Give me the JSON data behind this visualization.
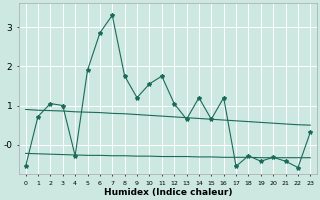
{
  "xlabel": "Humidex (Indice chaleur)",
  "background_color": "#cce8e0",
  "grid_color": "#ffffff",
  "line_color": "#1a6b5a",
  "x": [
    0,
    1,
    2,
    3,
    4,
    5,
    6,
    7,
    8,
    9,
    10,
    11,
    12,
    13,
    14,
    15,
    16,
    17,
    18,
    19,
    20,
    21,
    22,
    23
  ],
  "y_main": [
    -0.55,
    0.72,
    1.05,
    1.0,
    -0.28,
    1.9,
    2.85,
    3.3,
    1.75,
    1.2,
    1.55,
    1.75,
    1.05,
    0.65,
    1.2,
    0.65,
    1.2,
    -0.55,
    -0.28,
    -0.42,
    -0.32,
    -0.42,
    -0.58,
    0.32
  ],
  "y_upper": [
    0.9,
    0.88,
    0.87,
    0.86,
    0.84,
    0.83,
    0.82,
    0.8,
    0.79,
    0.77,
    0.75,
    0.73,
    0.71,
    0.69,
    0.67,
    0.65,
    0.63,
    0.61,
    0.59,
    0.57,
    0.55,
    0.53,
    0.51,
    0.5
  ],
  "y_lower": [
    -0.22,
    -0.23,
    -0.24,
    -0.25,
    -0.26,
    -0.27,
    -0.27,
    -0.28,
    -0.28,
    -0.29,
    -0.29,
    -0.3,
    -0.3,
    -0.3,
    -0.31,
    -0.31,
    -0.32,
    -0.32,
    -0.32,
    -0.33,
    -0.33,
    -0.33,
    -0.33,
    -0.33
  ],
  "ylim": [
    -0.75,
    3.6
  ],
  "yticks": [
    0,
    1,
    2,
    3
  ],
  "ytick_labels": [
    "-0",
    "1",
    "2",
    "3"
  ],
  "figsize": [
    3.2,
    2.0
  ],
  "dpi": 100
}
